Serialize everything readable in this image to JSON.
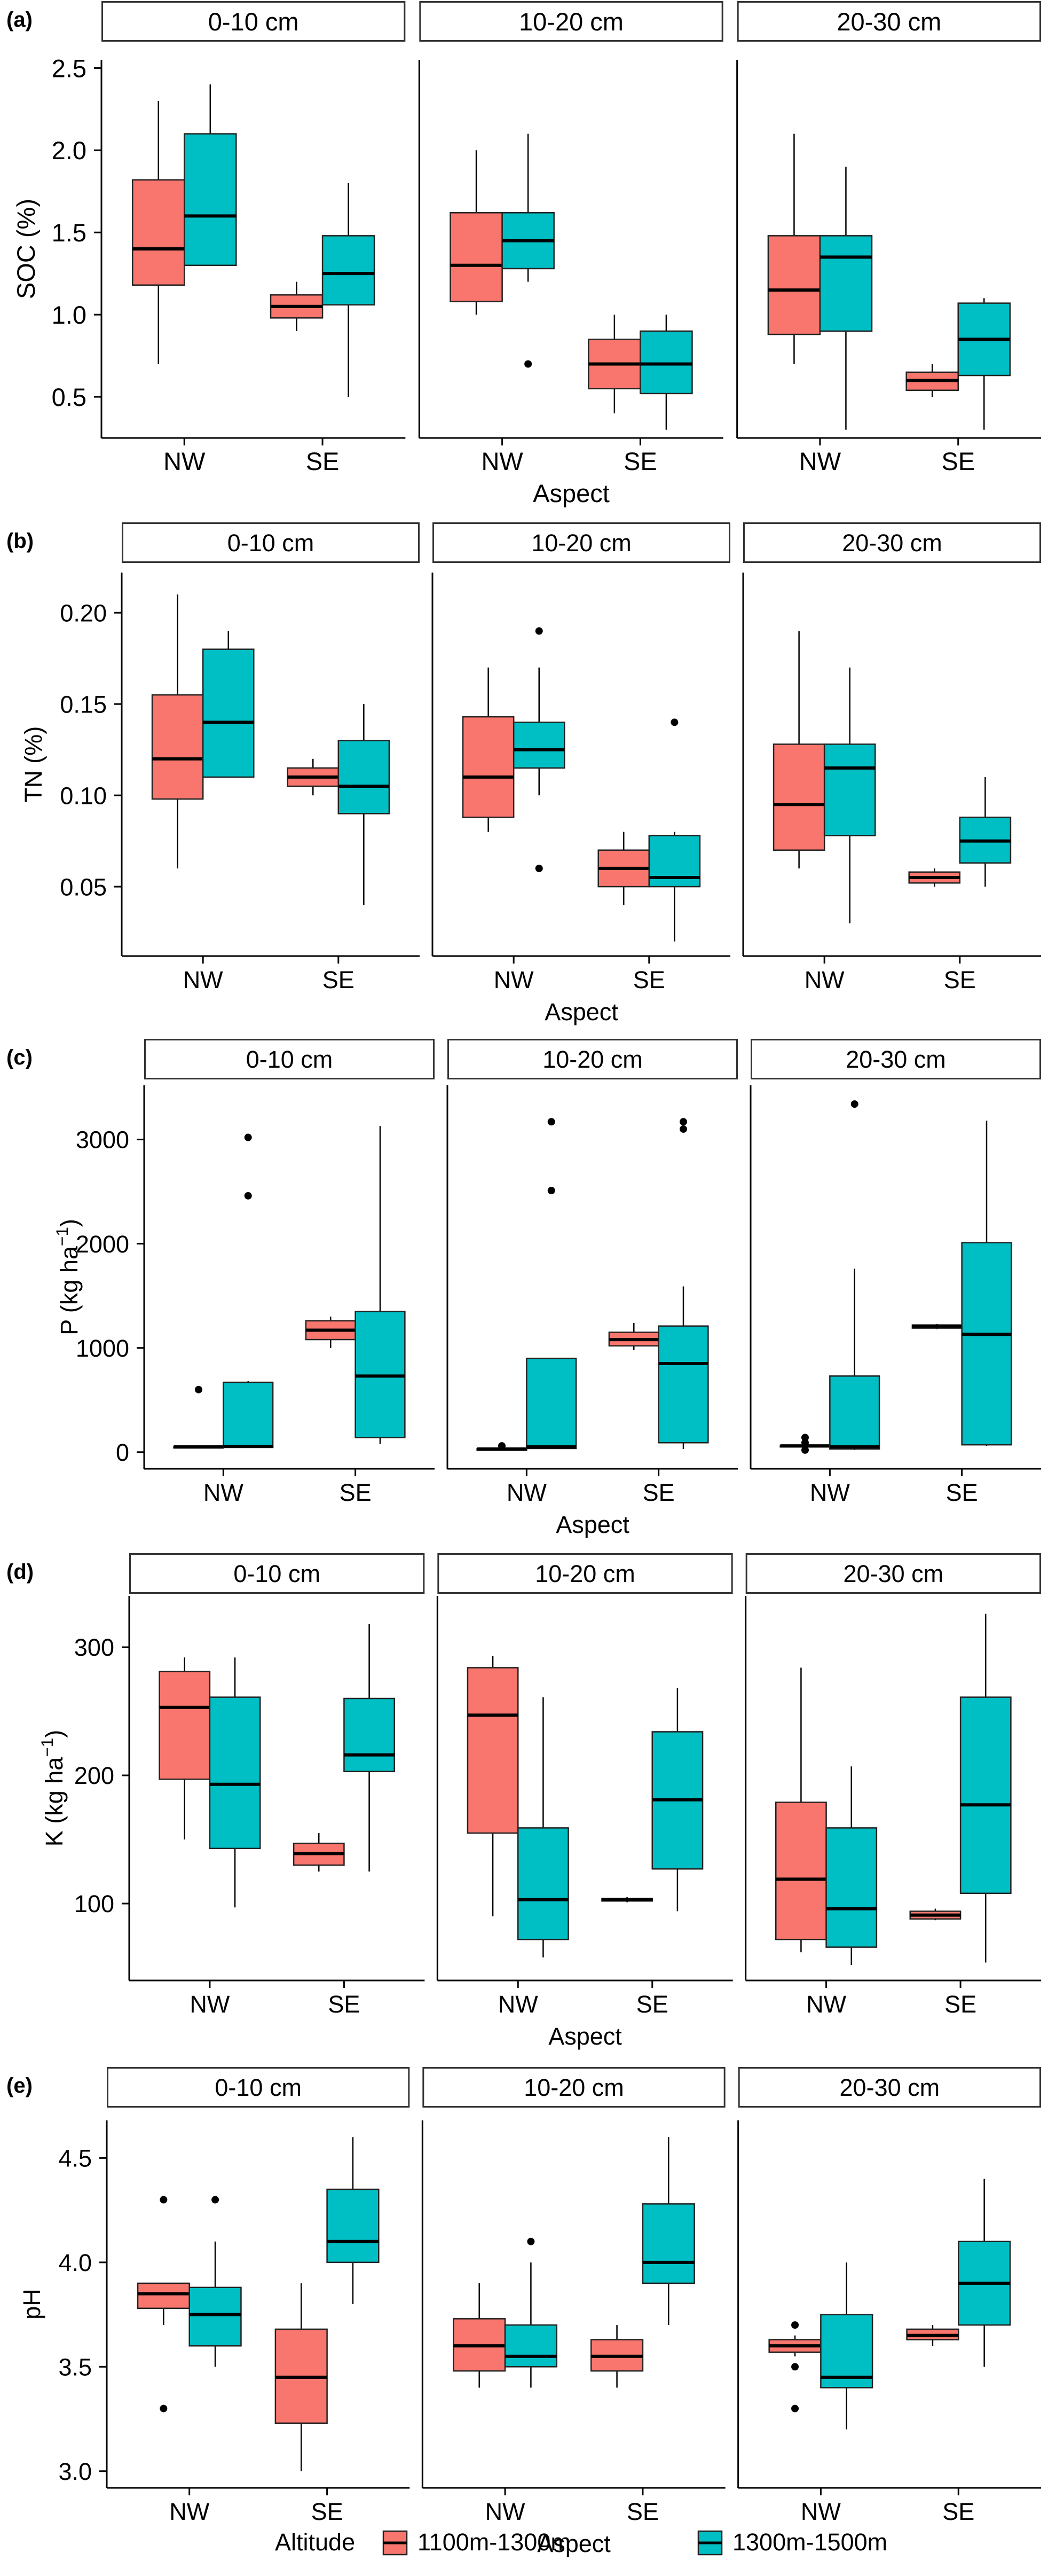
{
  "legend": {
    "title": "Altitude",
    "items": [
      {
        "label": "1100m-1300m",
        "color": "#F8766D"
      },
      {
        "label": "1300m-1500m",
        "color": "#00BFC4"
      }
    ]
  },
  "chart_data": [
    {
      "type": "box",
      "panel_label": "(a)",
      "ylabel": "SOC (%)",
      "ylabel_sup": "",
      "ylabel_end": "",
      "xlabel": "Aspect",
      "facets": [
        "0-10 cm",
        "10-20 cm",
        "20-30 cm"
      ],
      "categories": [
        "NW",
        "SE"
      ],
      "ylim": [
        0.25,
        2.55
      ],
      "yticks": [
        0.5,
        1.0,
        1.5,
        2.0,
        2.5
      ],
      "ytick_labels": [
        "0.5",
        "1.0",
        "1.5",
        "2.0",
        "2.5"
      ],
      "series_names": [
        "1100m-1300m",
        "1300m-1500m"
      ],
      "boxes": [
        [
          [
            {
              "min": 0.7,
              "q1": 1.18,
              "median": 1.4,
              "q3": 1.82,
              "max": 2.3,
              "outliers": []
            },
            {
              "min": 1.3,
              "q1": 1.3,
              "median": 1.6,
              "q3": 2.1,
              "max": 2.4,
              "outliers": []
            }
          ],
          [
            {
              "min": 0.9,
              "q1": 0.98,
              "median": 1.05,
              "q3": 1.12,
              "max": 1.2,
              "outliers": []
            },
            {
              "min": 0.5,
              "q1": 1.06,
              "median": 1.25,
              "q3": 1.48,
              "max": 1.8,
              "outliers": []
            }
          ]
        ],
        [
          [
            {
              "min": 1.0,
              "q1": 1.08,
              "median": 1.3,
              "q3": 1.62,
              "max": 2.0,
              "outliers": []
            },
            {
              "min": 1.2,
              "q1": 1.28,
              "median": 1.45,
              "q3": 1.62,
              "max": 2.1,
              "outliers": [
                0.7
              ]
            }
          ],
          [
            {
              "min": 0.4,
              "q1": 0.55,
              "median": 0.7,
              "q3": 0.85,
              "max": 1.0,
              "outliers": []
            },
            {
              "min": 0.3,
              "q1": 0.52,
              "median": 0.7,
              "q3": 0.9,
              "max": 1.0,
              "outliers": []
            }
          ]
        ],
        [
          [
            {
              "min": 0.7,
              "q1": 0.88,
              "median": 1.15,
              "q3": 1.48,
              "max": 2.1,
              "outliers": []
            },
            {
              "min": 0.3,
              "q1": 0.9,
              "median": 1.35,
              "q3": 1.48,
              "max": 1.9,
              "outliers": []
            }
          ],
          [
            {
              "min": 0.5,
              "q1": 0.54,
              "median": 0.6,
              "q3": 0.65,
              "max": 0.7,
              "outliers": []
            },
            {
              "min": 0.3,
              "q1": 0.63,
              "median": 0.85,
              "q3": 1.07,
              "max": 1.1,
              "outliers": []
            }
          ]
        ]
      ]
    },
    {
      "type": "box",
      "panel_label": "(b)",
      "ylabel": "TN (%)",
      "ylabel_sup": "",
      "ylabel_end": "",
      "xlabel": "Aspect",
      "facets": [
        "0-10 cm",
        "10-20 cm",
        "20-30 cm"
      ],
      "categories": [
        "NW",
        "SE"
      ],
      "ylim": [
        0.012,
        0.222
      ],
      "yticks": [
        0.05,
        0.1,
        0.15,
        0.2
      ],
      "ytick_labels": [
        "0.05",
        "0.10",
        "0.15",
        "0.20"
      ],
      "series_names": [
        "1100m-1300m",
        "1300m-1500m"
      ],
      "boxes": [
        [
          [
            {
              "min": 0.06,
              "q1": 0.098,
              "median": 0.12,
              "q3": 0.155,
              "max": 0.21,
              "outliers": []
            },
            {
              "min": 0.11,
              "q1": 0.11,
              "median": 0.14,
              "q3": 0.18,
              "max": 0.19,
              "outliers": []
            }
          ],
          [
            {
              "min": 0.1,
              "q1": 0.105,
              "median": 0.11,
              "q3": 0.115,
              "max": 0.12,
              "outliers": []
            },
            {
              "min": 0.04,
              "q1": 0.09,
              "median": 0.105,
              "q3": 0.13,
              "max": 0.15,
              "outliers": []
            }
          ]
        ],
        [
          [
            {
              "min": 0.08,
              "q1": 0.088,
              "median": 0.11,
              "q3": 0.143,
              "max": 0.17,
              "outliers": []
            },
            {
              "min": 0.1,
              "q1": 0.115,
              "median": 0.125,
              "q3": 0.14,
              "max": 0.17,
              "outliers": [
                0.19,
                0.06
              ]
            }
          ],
          [
            {
              "min": 0.04,
              "q1": 0.05,
              "median": 0.06,
              "q3": 0.07,
              "max": 0.08,
              "outliers": []
            },
            {
              "min": 0.02,
              "q1": 0.05,
              "median": 0.055,
              "q3": 0.078,
              "max": 0.08,
              "outliers": [
                0.14
              ]
            }
          ]
        ],
        [
          [
            {
              "min": 0.06,
              "q1": 0.07,
              "median": 0.095,
              "q3": 0.128,
              "max": 0.19,
              "outliers": []
            },
            {
              "min": 0.03,
              "q1": 0.078,
              "median": 0.115,
              "q3": 0.128,
              "max": 0.17,
              "outliers": []
            }
          ],
          [
            {
              "min": 0.05,
              "q1": 0.052,
              "median": 0.055,
              "q3": 0.058,
              "max": 0.06,
              "outliers": []
            },
            {
              "min": 0.05,
              "q1": 0.063,
              "median": 0.075,
              "q3": 0.088,
              "max": 0.11,
              "outliers": []
            }
          ]
        ]
      ]
    },
    {
      "type": "box",
      "panel_label": "(c)",
      "ylabel": "P (kg ha",
      "ylabel_sup": "−1",
      "ylabel_end": ")",
      "xlabel": "Aspect",
      "facets": [
        "0-10 cm",
        "10-20 cm",
        "20-30 cm"
      ],
      "categories": [
        "NW",
        "SE"
      ],
      "ylim": [
        -160,
        3520
      ],
      "yticks": [
        0,
        1000,
        2000,
        3000
      ],
      "ytick_labels": [
        "0",
        "1000",
        "2000",
        "3000"
      ],
      "series_names": [
        "1100m-1300m",
        "1300m-1500m"
      ],
      "boxes": [
        [
          [
            {
              "min": 40,
              "q1": 45,
              "median": 50,
              "q3": 55,
              "max": 60,
              "outliers": [
                600
              ]
            },
            {
              "min": 40,
              "q1": 45,
              "median": 55,
              "q3": 670,
              "max": 680,
              "outliers": [
                3020,
                2460
              ]
            }
          ],
          [
            {
              "min": 1000,
              "q1": 1080,
              "median": 1170,
              "q3": 1260,
              "max": 1300,
              "outliers": []
            },
            {
              "min": 80,
              "q1": 140,
              "median": 730,
              "q3": 1350,
              "max": 3130,
              "outliers": []
            }
          ]
        ],
        [
          [
            {
              "min": 25,
              "q1": 28,
              "median": 30,
              "q3": 33,
              "max": 35,
              "outliers": [
                60
              ]
            },
            {
              "min": 30,
              "q1": 35,
              "median": 50,
              "q3": 900,
              "max": 900,
              "outliers": [
                3170,
                2510
              ]
            }
          ],
          [
            {
              "min": 980,
              "q1": 1020,
              "median": 1080,
              "q3": 1150,
              "max": 1240,
              "outliers": []
            },
            {
              "min": 30,
              "q1": 90,
              "median": 850,
              "q3": 1210,
              "max": 1590,
              "outliers": [
                3170,
                3100
              ]
            }
          ]
        ],
        [
          [
            {
              "min": 50,
              "q1": 55,
              "median": 60,
              "q3": 65,
              "max": 70,
              "outliers": [
                140,
                90,
                20
              ]
            },
            {
              "min": 20,
              "q1": 30,
              "median": 50,
              "q3": 730,
              "max": 1760,
              "outliers": [
                3340
              ]
            }
          ],
          [
            {
              "min": 1180,
              "q1": 1190,
              "median": 1210,
              "q3": 1220,
              "max": 1230,
              "outliers": []
            },
            {
              "min": 60,
              "q1": 70,
              "median": 1130,
              "q3": 2010,
              "max": 3180,
              "outliers": []
            }
          ]
        ]
      ]
    },
    {
      "type": "box",
      "panel_label": "(d)",
      "ylabel": "K (kg ha",
      "ylabel_sup": "−1",
      "ylabel_end": ")",
      "xlabel": "Aspect",
      "facets": [
        "0-10 cm",
        "10-20 cm",
        "20-30 cm"
      ],
      "categories": [
        "NW",
        "SE"
      ],
      "ylim": [
        40,
        340
      ],
      "yticks": [
        100,
        200,
        300
      ],
      "ytick_labels": [
        "100",
        "200",
        "300"
      ],
      "series_names": [
        "1100m-1300m",
        "1300m-1500m"
      ],
      "boxes": [
        [
          [
            {
              "min": 150,
              "q1": 197,
              "median": 253,
              "q3": 281,
              "max": 292,
              "outliers": []
            },
            {
              "min": 97,
              "q1": 143,
              "median": 193,
              "q3": 261,
              "max": 292,
              "outliers": []
            }
          ],
          [
            {
              "min": 125,
              "q1": 130,
              "median": 139,
              "q3": 147,
              "max": 155,
              "outliers": []
            },
            {
              "min": 125,
              "q1": 203,
              "median": 216,
              "q3": 260,
              "max": 318,
              "outliers": []
            }
          ]
        ],
        [
          [
            {
              "min": 90,
              "q1": 155,
              "median": 247,
              "q3": 284,
              "max": 293,
              "outliers": []
            },
            {
              "min": 58,
              "q1": 72,
              "median": 103,
              "q3": 159,
              "max": 261,
              "outliers": []
            }
          ],
          [
            {
              "min": 101,
              "q1": 102,
              "median": 103,
              "q3": 104,
              "max": 105,
              "outliers": []
            },
            {
              "min": 94,
              "q1": 127,
              "median": 181,
              "q3": 234,
              "max": 268,
              "outliers": []
            }
          ]
        ],
        [
          [
            {
              "min": 62,
              "q1": 72,
              "median": 119,
              "q3": 179,
              "max": 284,
              "outliers": []
            },
            {
              "min": 52,
              "q1": 66,
              "median": 96,
              "q3": 159,
              "max": 207,
              "outliers": []
            }
          ],
          [
            {
              "min": 87,
              "q1": 88,
              "median": 91,
              "q3": 94,
              "max": 96,
              "outliers": []
            },
            {
              "min": 54,
              "q1": 108,
              "median": 177,
              "q3": 261,
              "max": 326,
              "outliers": []
            }
          ]
        ]
      ]
    },
    {
      "type": "box",
      "panel_label": "(e)",
      "ylabel": "pH",
      "ylabel_sup": "",
      "ylabel_end": "",
      "xlabel": "Aspect",
      "facets": [
        "0-10 cm",
        "10-20 cm",
        "20-30 cm"
      ],
      "categories": [
        "NW",
        "SE"
      ],
      "ylim": [
        2.92,
        4.68
      ],
      "yticks": [
        3.0,
        3.5,
        4.0,
        4.5
      ],
      "ytick_labels": [
        "3.0",
        "3.5",
        "4.0",
        "4.5"
      ],
      "series_names": [
        "1100m-1300m",
        "1300m-1500m"
      ],
      "boxes": [
        [
          [
            {
              "min": 3.7,
              "q1": 3.78,
              "median": 3.85,
              "q3": 3.9,
              "max": 3.9,
              "outliers": [
                4.3,
                3.3
              ]
            },
            {
              "min": 3.5,
              "q1": 3.6,
              "median": 3.75,
              "q3": 3.88,
              "max": 4.1,
              "outliers": [
                4.3
              ]
            }
          ],
          [
            {
              "min": 3.0,
              "q1": 3.23,
              "median": 3.45,
              "q3": 3.68,
              "max": 3.9,
              "outliers": []
            },
            {
              "min": 3.8,
              "q1": 4.0,
              "median": 4.1,
              "q3": 4.35,
              "max": 4.6,
              "outliers": []
            }
          ]
        ],
        [
          [
            {
              "min": 3.4,
              "q1": 3.48,
              "median": 3.6,
              "q3": 3.73,
              "max": 3.9,
              "outliers": []
            },
            {
              "min": 3.4,
              "q1": 3.5,
              "median": 3.55,
              "q3": 3.7,
              "max": 4.0,
              "outliers": [
                4.1
              ]
            }
          ],
          [
            {
              "min": 3.4,
              "q1": 3.48,
              "median": 3.55,
              "q3": 3.63,
              "max": 3.7,
              "outliers": []
            },
            {
              "min": 3.7,
              "q1": 3.9,
              "median": 4.0,
              "q3": 4.28,
              "max": 4.6,
              "outliers": []
            }
          ]
        ],
        [
          [
            {
              "min": 3.55,
              "q1": 3.57,
              "median": 3.6,
              "q3": 3.63,
              "max": 3.65,
              "outliers": [
                3.7,
                3.5,
                3.3
              ]
            },
            {
              "min": 3.2,
              "q1": 3.4,
              "median": 3.45,
              "q3": 3.75,
              "max": 4.0,
              "outliers": []
            }
          ],
          [
            {
              "min": 3.6,
              "q1": 3.63,
              "median": 3.65,
              "q3": 3.68,
              "max": 3.7,
              "outliers": []
            },
            {
              "min": 3.5,
              "q1": 3.7,
              "median": 3.9,
              "q3": 4.1,
              "max": 4.4,
              "outliers": []
            }
          ]
        ]
      ]
    }
  ]
}
